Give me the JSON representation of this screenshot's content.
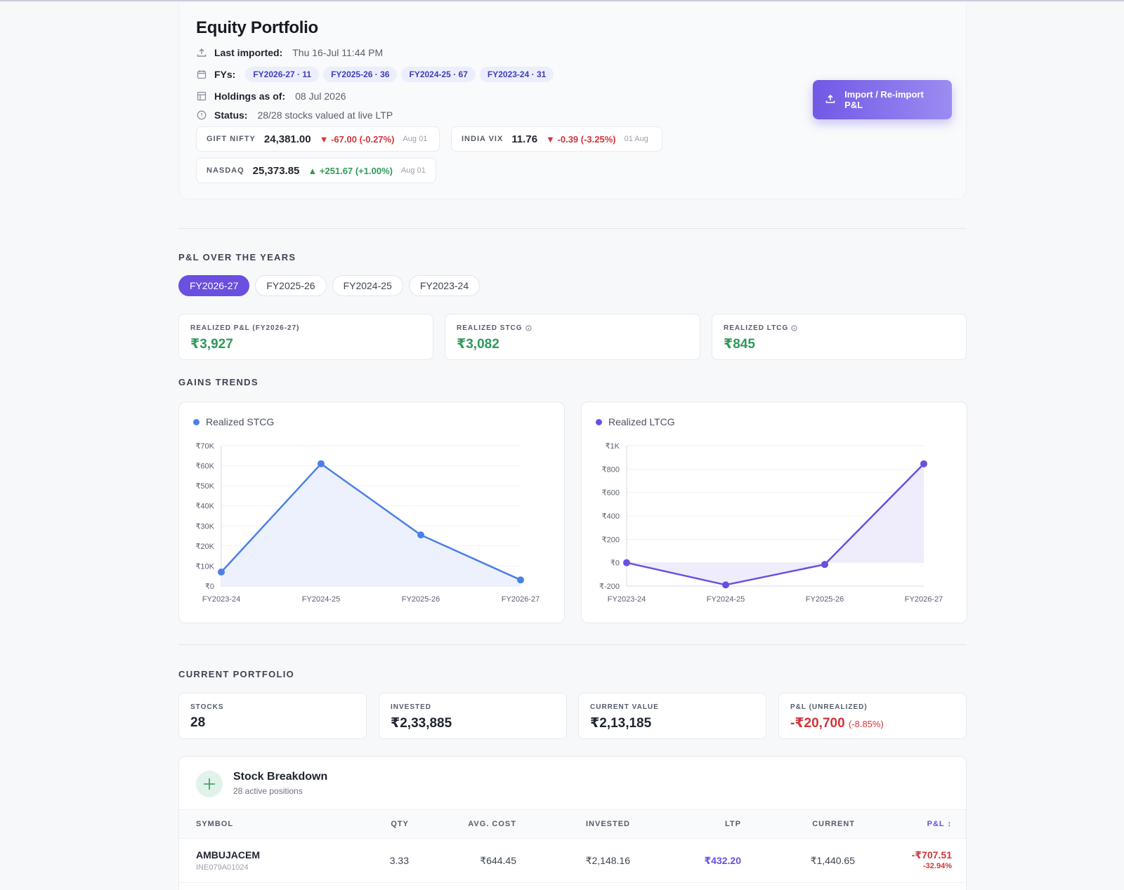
{
  "header": {
    "title": "Equity Portfolio",
    "last_imported_label": "Last imported:",
    "last_imported_value": "Thu 16-Jul 11:44 PM",
    "fys_label": "FYs:",
    "fy_chips": [
      {
        "fy": "FY2026-27",
        "count": "11"
      },
      {
        "fy": "FY2025-26",
        "count": "36"
      },
      {
        "fy": "FY2024-25",
        "count": "67"
      },
      {
        "fy": "FY2023-24",
        "count": "31"
      }
    ],
    "holdings_label": "Holdings as of:",
    "holdings_value": "08 Jul 2026",
    "status_label": "Status:",
    "status_value": "28/28 stocks valued at live LTP",
    "import_button": "Import / Re-import P&L"
  },
  "tickers": [
    {
      "name": "GIFT NIFTY",
      "value": "24,381.00",
      "change": "▼ -67.00 (-0.27%)",
      "direction": "down",
      "date": "Aug 01"
    },
    {
      "name": "INDIA VIX",
      "value": "11.76",
      "change": "▼ -0.39 (-3.25%)",
      "direction": "down",
      "date": "01 Aug"
    },
    {
      "name": "NASDAQ",
      "value": "25,373.85",
      "change": "▲ +251.67 (+1.00%)",
      "direction": "up",
      "date": "Aug 01"
    }
  ],
  "pl_section": {
    "title": "P&L OVER THE YEARS",
    "tabs": [
      "FY2026-27",
      "FY2025-26",
      "FY2024-25",
      "FY2023-24"
    ],
    "active_tab": "FY2026-27",
    "cards": [
      {
        "label": "REALIZED P&L (FY2026-27)",
        "value": "₹3,927",
        "info": false
      },
      {
        "label": "REALIZED STCG",
        "value": "₹3,082",
        "info": true
      },
      {
        "label": "REALIZED LTCG",
        "value": "₹845",
        "info": true
      }
    ]
  },
  "gains_section": {
    "title": "GAINS TRENDS"
  },
  "chart_data": [
    {
      "type": "area",
      "legend": "Realized STCG",
      "color": "#4a7fe8",
      "fill": "#edf1fd",
      "categories": [
        "FY2023-24",
        "FY2024-25",
        "FY2025-26",
        "FY2026-27"
      ],
      "values": [
        7000,
        61000,
        25500,
        3082
      ],
      "ylim": [
        0,
        70000
      ],
      "yticks": [
        0,
        10000,
        20000,
        30000,
        40000,
        50000,
        60000,
        70000
      ],
      "ytick_labels": [
        "₹0",
        "₹10K",
        "₹20K",
        "₹30K",
        "₹40K",
        "₹50K",
        "₹60K",
        "₹70K"
      ],
      "grid": true
    },
    {
      "type": "area",
      "legend": "Realized LTCG",
      "color": "#6a4fe0",
      "fill": "#efecfc",
      "categories": [
        "FY2023-24",
        "FY2024-25",
        "FY2025-26",
        "FY2026-27"
      ],
      "values": [
        0,
        -190,
        -15,
        845
      ],
      "ylim": [
        -200,
        1000
      ],
      "yticks": [
        -200,
        0,
        200,
        400,
        600,
        800,
        1000
      ],
      "ytick_labels": [
        "₹-200",
        "₹0",
        "₹200",
        "₹400",
        "₹600",
        "₹800",
        "₹1K"
      ],
      "grid": true
    }
  ],
  "portfolio_section": {
    "title": "CURRENT PORTFOLIO",
    "cards": [
      {
        "label": "STOCKS",
        "value": "28"
      },
      {
        "label": "INVESTED",
        "value": "₹2,33,885"
      },
      {
        "label": "CURRENT VALUE",
        "value": "₹2,13,185"
      },
      {
        "label": "P&L (UNREALIZED)",
        "value": "-₹20,700",
        "pct": "(-8.85%)"
      }
    ]
  },
  "breakdown": {
    "title": "Stock Breakdown",
    "subtitle": "28 active positions",
    "columns": [
      "SYMBOL",
      "QTY",
      "AVG. COST",
      "INVESTED",
      "LTP",
      "CURRENT",
      "P&L ↕"
    ],
    "rows": [
      {
        "symbol": "AMBUJACEM",
        "isin": "INE079A01024",
        "qty": "3.33",
        "avg_cost": "₹644.45",
        "invested": "₹2,148.16",
        "ltp": "₹432.20",
        "current": "₹1,440.65",
        "pl": "-₹707.51",
        "pl_pct": "-32.94%"
      }
    ]
  }
}
